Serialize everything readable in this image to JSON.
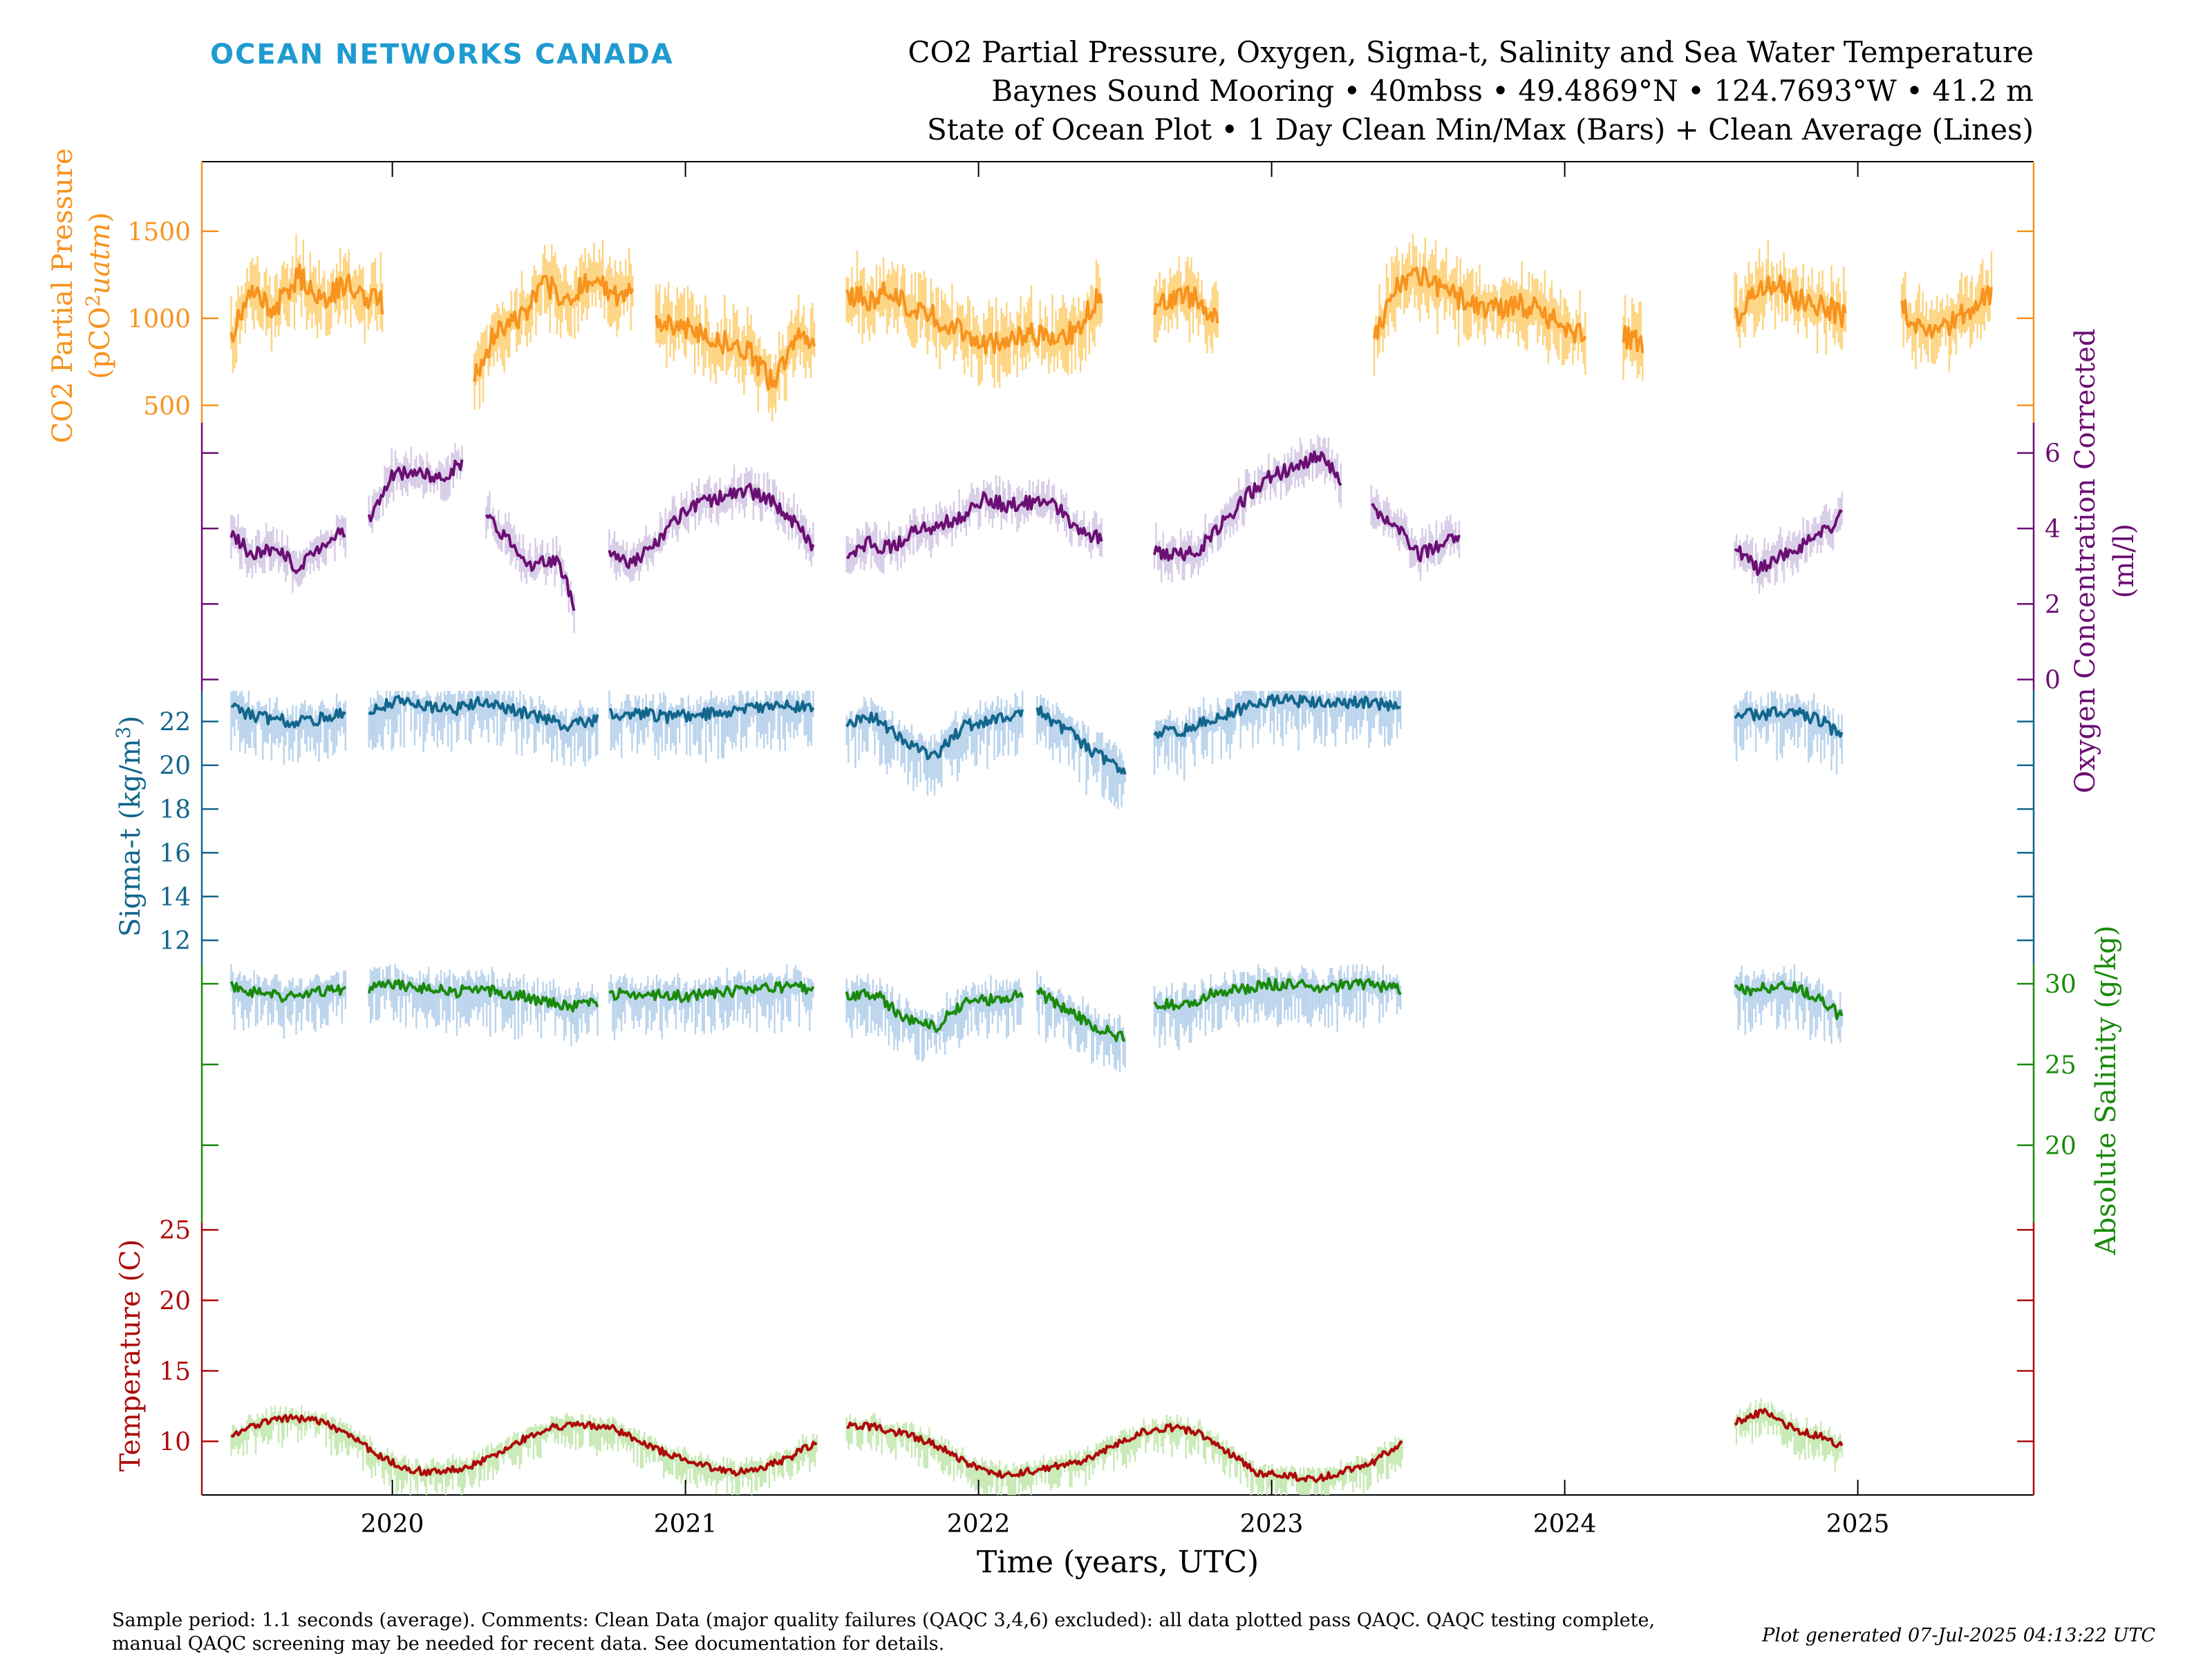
{
  "brand": "OCEAN NETWORKS CANADA",
  "header": {
    "title_line1": "CO2 Partial Pressure, Oxygen, Sigma-t, Salinity and Sea Water Temperature",
    "title_line2": "Baynes Sound Mooring • 40mbss • 49.4869°N • 124.7693°W • 41.2 m",
    "title_line3": "State of Ocean Plot • 1 Day Clean Min/Max (Bars) + Clean Average (Lines)"
  },
  "footer": {
    "comment_line1": "Sample period: 1.1 seconds (average). Comments: Clean Data (major quality failures (QAQC 3,4,6) excluded): all data plotted pass QAQC. QAQC testing complete,",
    "comment_line2": "manual QAQC screening may be needed for recent data. See documentation for details.",
    "generated": "Plot generated 07-Jul-2025 04:13:22 UTC"
  },
  "colors": {
    "co2": "#f7931e",
    "co2_bar": "#fdd37e",
    "oxygen": "#6b0f73",
    "oxygen_bar": "#d6cbe6",
    "sigma": "#12668c",
    "sigma_bar": "#b9d3ec",
    "salinity": "#1a8a0c",
    "salinity_bar": "#b9d3ec",
    "temperature": "#ad0b0b",
    "temperature_bar": "#c6e9b3",
    "brand": "#1f9bd0"
  },
  "chart_data": [
    {
      "type": "line",
      "name": "co2",
      "ylabel": "CO2 Partial Pressure (pCO²uatm)",
      "ylabel_line1": "CO2 Partial Pressure",
      "ylabel_line2": "(pCO",
      "ylabel_sup": "2",
      "ylabel_unit": "uatm",
      "ylabel_close": ")",
      "axis_side": "left",
      "ylim": [
        400,
        1900
      ],
      "yticks": [
        500,
        1000,
        1500
      ],
      "segments": [
        {
          "x": [
            2019.45,
            2019.52,
            2019.6,
            2019.68,
            2019.76,
            2019.84,
            2019.92,
            2019.97
          ],
          "y": [
            900,
            1150,
            1050,
            1250,
            1100,
            1200,
            1120,
            1080
          ]
        },
        {
          "x": [
            2020.28,
            2020.36,
            2020.44,
            2020.52,
            2020.6,
            2020.68,
            2020.76,
            2020.82
          ],
          "y": [
            680,
            950,
            1000,
            1200,
            1100,
            1250,
            1120,
            1150
          ]
        },
        {
          "x": [
            2020.9,
            2020.98,
            2021.06,
            2021.14,
            2021.22,
            2021.3,
            2021.38,
            2021.44
          ],
          "y": [
            980,
            960,
            900,
            860,
            800,
            620,
            880,
            900
          ]
        },
        {
          "x": [
            2021.55,
            2021.62,
            2021.7,
            2021.78,
            2021.86,
            2021.94,
            2022.02,
            2022.1,
            2022.18,
            2022.26,
            2022.34,
            2022.42
          ],
          "y": [
            1150,
            1100,
            1150,
            1050,
            1000,
            920,
            850,
            880,
            920,
            850,
            950,
            1150
          ]
        },
        {
          "x": [
            2022.6,
            2022.68,
            2022.76,
            2022.82
          ],
          "y": [
            1050,
            1150,
            1100,
            950
          ]
        },
        {
          "x": [
            2023.35,
            2023.43,
            2023.51,
            2023.59,
            2023.67,
            2023.75,
            2023.83,
            2023.91,
            2023.99,
            2024.07
          ],
          "y": [
            900,
            1200,
            1250,
            1150,
            1100,
            1050,
            1080,
            1050,
            950,
            900
          ]
        },
        {
          "x": [
            2024.2,
            2024.27
          ],
          "y": [
            900,
            860
          ]
        },
        {
          "x": [
            2024.58,
            2024.65,
            2024.72,
            2024.8,
            2024.88,
            2024.96
          ],
          "y": [
            1000,
            1150,
            1200,
            1100,
            1080,
            1000
          ]
        },
        {
          "x": [
            2025.15,
            2025.22,
            2025.3,
            2025.38,
            2025.46
          ],
          "y": [
            1080,
            900,
            950,
            1050,
            1150
          ]
        }
      ]
    },
    {
      "type": "line",
      "name": "oxygen",
      "ylabel": "Oxygen Concentration Corrected (ml/l)",
      "ylabel_line1": "Oxygen Concentration Corrected",
      "ylabel_line2": "(ml/l)",
      "axis_side": "right",
      "ylim": [
        -0.3,
        6.8
      ],
      "yticks": [
        0,
        2,
        4,
        6
      ],
      "segments": [
        {
          "x": [
            2019.45,
            2019.52,
            2019.6,
            2019.68,
            2019.76,
            2019.84
          ],
          "y": [
            3.9,
            3.3,
            3.5,
            2.9,
            3.6,
            4.0
          ]
        },
        {
          "x": [
            2019.92,
            2020.0,
            2020.08,
            2020.16,
            2020.24
          ],
          "y": [
            4.2,
            5.4,
            5.5,
            5.3,
            5.8
          ]
        },
        {
          "x": [
            2020.32,
            2020.4,
            2020.48,
            2020.56,
            2020.62
          ],
          "y": [
            4.3,
            3.7,
            3.0,
            3.2,
            2.0
          ]
        },
        {
          "x": [
            2020.74,
            2020.82,
            2020.9,
            2020.98,
            2021.06,
            2021.14,
            2021.22,
            2021.3,
            2021.38,
            2021.44
          ],
          "y": [
            3.4,
            3.1,
            3.6,
            4.3,
            4.7,
            4.9,
            5.0,
            4.7,
            4.1,
            3.5
          ]
        },
        {
          "x": [
            2021.55,
            2021.62,
            2021.7,
            2021.78,
            2021.86,
            2021.94,
            2022.02,
            2022.1,
            2022.18,
            2022.26,
            2022.34,
            2022.42
          ],
          "y": [
            3.2,
            3.6,
            3.5,
            3.9,
            4.1,
            4.3,
            4.8,
            4.6,
            4.7,
            4.6,
            4.0,
            3.7
          ]
        },
        {
          "x": [
            2022.6,
            2022.68,
            2022.76,
            2022.84,
            2022.92,
            2023.0,
            2023.08,
            2023.16,
            2023.24
          ],
          "y": [
            3.4,
            3.3,
            3.5,
            4.2,
            4.9,
            5.4,
            5.6,
            5.9,
            5.3
          ]
        },
        {
          "x": [
            2023.34,
            2023.42,
            2023.5,
            2023.58,
            2023.64
          ],
          "y": [
            4.5,
            4.1,
            3.3,
            3.6,
            3.7
          ]
        },
        {
          "x": [
            2024.58,
            2024.66,
            2024.74,
            2024.82,
            2024.9,
            2024.95
          ],
          "y": [
            3.5,
            2.9,
            3.3,
            3.6,
            4.0,
            4.4
          ]
        }
      ]
    },
    {
      "type": "line",
      "name": "sigma-t",
      "ylabel": "Sigma-t (kg/m³)",
      "ylabel_main": "Sigma-t (kg/m",
      "ylabel_sup": "3",
      "ylabel_close": ")",
      "axis_side": "left",
      "ylim": [
        10.9,
        23.4
      ],
      "yticks": [
        12,
        14,
        16,
        18,
        20,
        22
      ],
      "segments": [
        {
          "x": [
            2019.45,
            2019.55,
            2019.65,
            2019.75,
            2019.84
          ],
          "y": [
            22.6,
            22.2,
            22.0,
            22.1,
            22.4
          ]
        },
        {
          "x": [
            2019.92,
            2020.0,
            2020.1,
            2020.2,
            2020.3,
            2020.4,
            2020.5,
            2020.6,
            2020.7
          ],
          "y": [
            22.5,
            22.9,
            22.8,
            22.5,
            22.9,
            22.6,
            22.2,
            21.8,
            22.1
          ]
        },
        {
          "x": [
            2020.74,
            2020.84,
            2020.94,
            2021.04,
            2021.14,
            2021.24,
            2021.34,
            2021.44
          ],
          "y": [
            22.3,
            22.4,
            22.2,
            22.3,
            22.4,
            22.6,
            22.7,
            22.6
          ]
        },
        {
          "x": [
            2021.55,
            2021.65,
            2021.75,
            2021.85,
            2021.95,
            2022.05,
            2022.15
          ],
          "y": [
            22.0,
            22.2,
            21.0,
            20.4,
            21.8,
            22.0,
            22.3
          ]
        },
        {
          "x": [
            2022.2,
            2022.3,
            2022.4,
            2022.5
          ],
          "y": [
            22.5,
            21.6,
            20.5,
            19.8
          ]
        },
        {
          "x": [
            2022.6,
            2022.7,
            2022.8,
            2022.9,
            2023.0,
            2023.1,
            2023.2,
            2023.3,
            2023.4,
            2023.44
          ],
          "y": [
            21.5,
            21.6,
            22.1,
            22.6,
            23.0,
            22.9,
            22.8,
            22.9,
            22.7,
            22.5
          ]
        },
        {
          "x": [
            2024.58,
            2024.68,
            2024.78,
            2024.88,
            2024.95
          ],
          "y": [
            22.4,
            22.3,
            22.5,
            22.0,
            21.2
          ]
        }
      ]
    },
    {
      "type": "line",
      "name": "salinity",
      "ylabel": "Absolute Salinity (g/kg)",
      "axis_side": "right",
      "ylim": [
        15.2,
        31.2
      ],
      "yticks": [
        20,
        25,
        30
      ],
      "segments": [
        {
          "x": [
            2019.45,
            2019.55,
            2019.65,
            2019.75,
            2019.84
          ],
          "y": [
            29.9,
            29.4,
            29.2,
            29.5,
            29.7
          ]
        },
        {
          "x": [
            2019.92,
            2020.0,
            2020.1,
            2020.2,
            2020.3,
            2020.4,
            2020.5,
            2020.6,
            2020.7
          ],
          "y": [
            29.6,
            30.0,
            29.8,
            29.5,
            29.6,
            29.4,
            29.0,
            28.6,
            28.9
          ]
        },
        {
          "x": [
            2020.74,
            2020.84,
            2020.94,
            2021.04,
            2021.14,
            2021.24,
            2021.34,
            2021.44
          ],
          "y": [
            29.3,
            29.4,
            29.2,
            29.3,
            29.5,
            29.6,
            29.8,
            29.7
          ]
        },
        {
          "x": [
            2021.55,
            2021.65,
            2021.75,
            2021.85,
            2021.95,
            2022.05,
            2022.15
          ],
          "y": [
            29.3,
            29.4,
            27.8,
            27.3,
            28.8,
            29.0,
            29.4
          ]
        },
        {
          "x": [
            2022.2,
            2022.3,
            2022.4,
            2022.5
          ],
          "y": [
            29.5,
            28.4,
            27.3,
            26.6
          ]
        },
        {
          "x": [
            2022.6,
            2022.7,
            2022.8,
            2022.9,
            2023.0,
            2023.1,
            2023.2,
            2023.3,
            2023.4,
            2023.44
          ],
          "y": [
            28.8,
            28.6,
            29.4,
            29.7,
            30.0,
            29.9,
            29.8,
            30.0,
            29.8,
            29.6
          ]
        },
        {
          "x": [
            2024.58,
            2024.68,
            2024.78,
            2024.88,
            2024.95
          ],
          "y": [
            29.6,
            29.7,
            29.8,
            29.0,
            27.8
          ]
        }
      ]
    },
    {
      "type": "line",
      "name": "temperature",
      "ylabel": "Temperature (C)",
      "axis_side": "left",
      "ylim": [
        6.2,
        25.5
      ],
      "yticks": [
        10,
        15,
        20,
        25
      ],
      "segments": [
        {
          "x": [
            2019.45,
            2019.55,
            2019.65,
            2019.75,
            2019.85,
            2019.95,
            2020.05,
            2020.15,
            2020.25,
            2020.35,
            2020.45,
            2020.55,
            2020.65,
            2020.75,
            2020.85,
            2020.95,
            2021.05,
            2021.15,
            2021.25,
            2021.35,
            2021.45
          ],
          "y": [
            10.5,
            11.3,
            11.7,
            11.4,
            10.6,
            9.0,
            8.0,
            7.8,
            8.1,
            9.1,
            10.2,
            11.0,
            11.2,
            10.9,
            10.0,
            9.0,
            8.4,
            7.8,
            8.0,
            8.8,
            10.0
          ]
        },
        {
          "x": [
            2021.55,
            2021.65,
            2021.75,
            2021.85,
            2021.95,
            2022.05,
            2022.15,
            2022.25,
            2022.35,
            2022.45,
            2022.55,
            2022.65,
            2022.75,
            2022.85,
            2022.95,
            2023.05,
            2023.15,
            2023.25,
            2023.35,
            2023.45
          ],
          "y": [
            11.2,
            11.0,
            10.5,
            9.8,
            8.6,
            7.6,
            7.8,
            8.2,
            8.6,
            9.6,
            10.6,
            11.0,
            10.6,
            9.2,
            7.8,
            7.6,
            7.3,
            7.9,
            8.6,
            10.0
          ]
        },
        {
          "x": [
            2024.58,
            2024.68,
            2024.78,
            2024.88,
            2024.95
          ],
          "y": [
            11.4,
            12.1,
            10.9,
            10.3,
            9.6
          ]
        }
      ]
    }
  ],
  "x_axis": {
    "label": "Time (years, UTC)",
    "range": [
      2019.35,
      2025.6
    ],
    "ticks": [
      {
        "v": 2020.0,
        "label": "2020"
      },
      {
        "v": 2021.0,
        "label": "2021"
      },
      {
        "v": 2022.0,
        "label": "2022"
      },
      {
        "v": 2023.0,
        "label": "2023"
      },
      {
        "v": 2024.0,
        "label": "2024"
      },
      {
        "v": 2025.0,
        "label": "2025"
      }
    ]
  }
}
